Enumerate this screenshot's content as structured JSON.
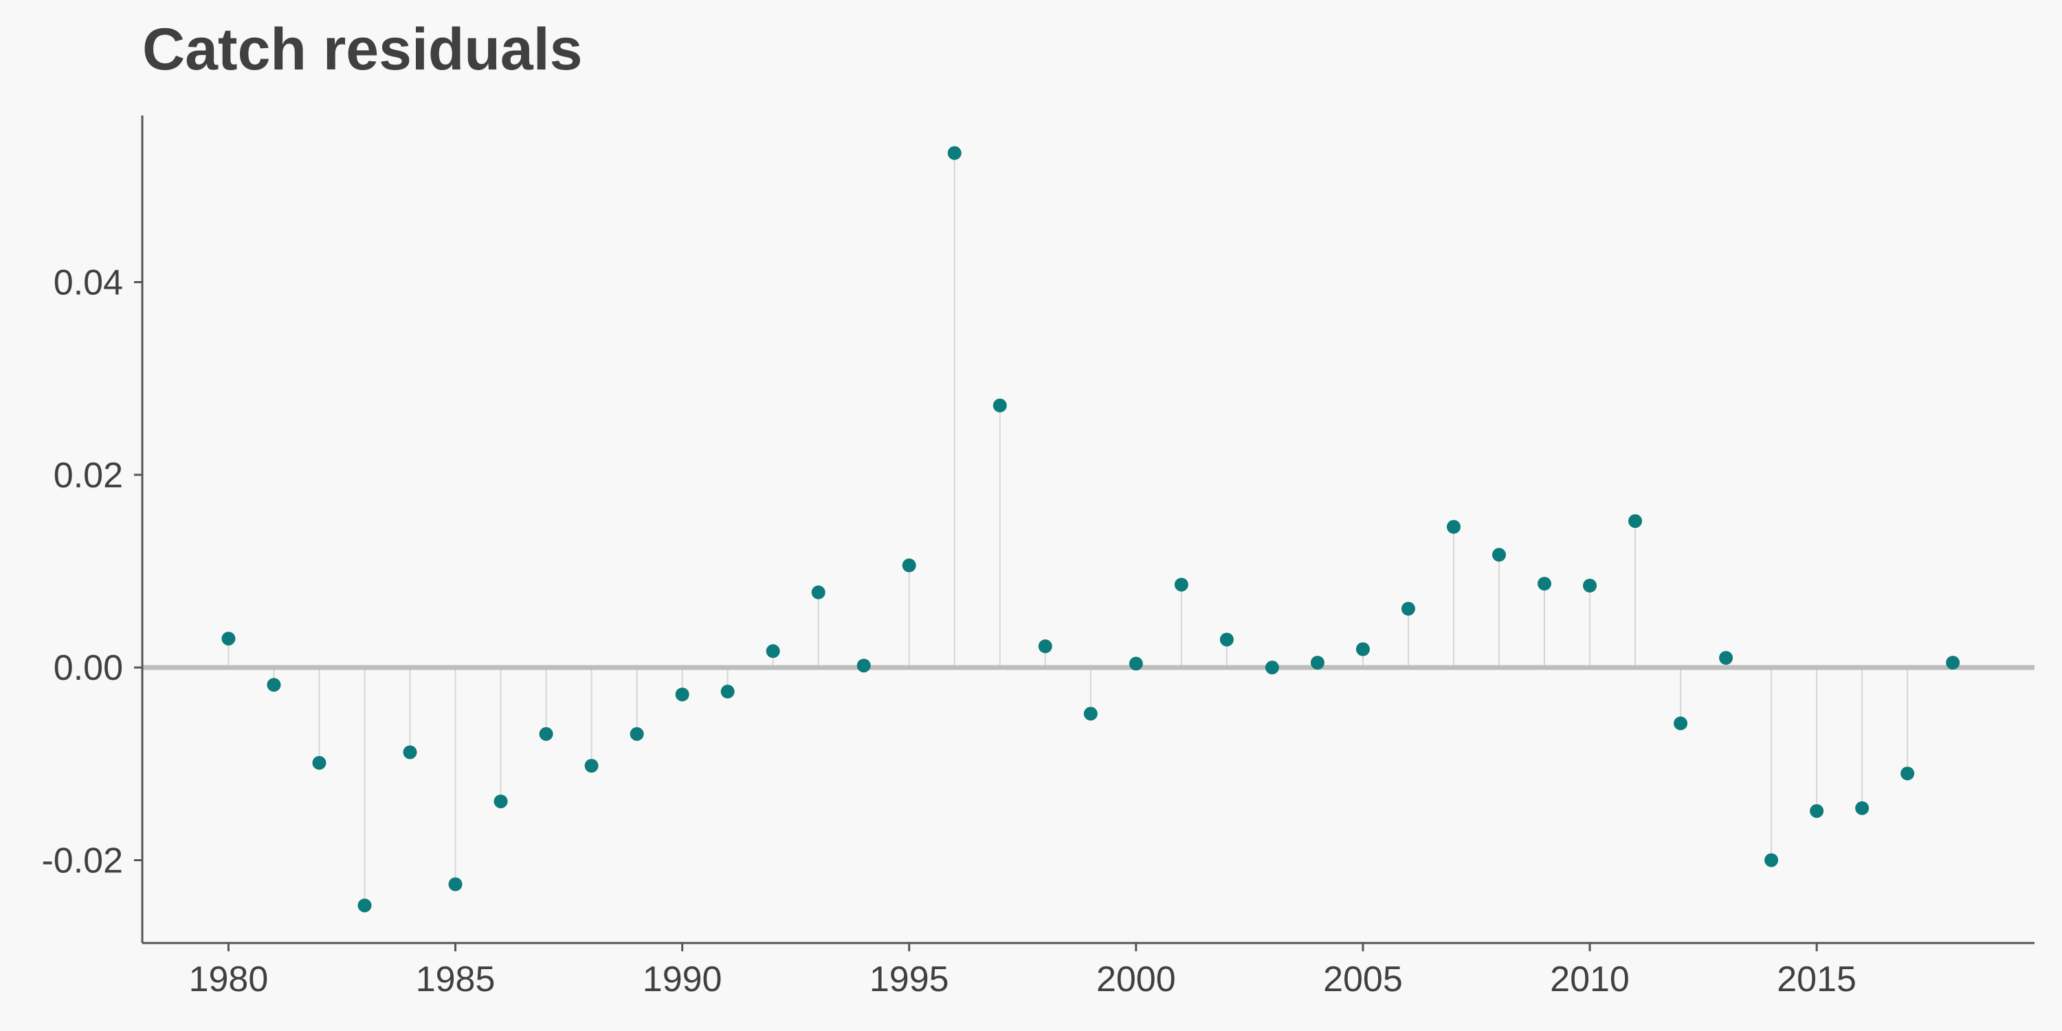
{
  "chart_data": {
    "type": "scatter",
    "style": "lollipop",
    "title": "Catch residuals",
    "xlabel": "",
    "ylabel": "",
    "xlim": [
      1978.1,
      2019.8
    ],
    "ylim": [
      -0.0286,
      0.0573
    ],
    "x_ticks": [
      1980,
      1985,
      1990,
      1995,
      2000,
      2005,
      2010,
      2015
    ],
    "y_ticks": [
      -0.02,
      0.0,
      0.02,
      0.04
    ],
    "y_tick_labels": [
      "-0.02",
      "0.00",
      "0.02",
      "0.04"
    ],
    "baseline": 0,
    "grid": false,
    "colors": {
      "points": "#0b7b7b",
      "baseline": "#bdbdbd",
      "stems": "#d6d6d6",
      "background": "#f8f8f8"
    },
    "x": [
      1980,
      1981,
      1982,
      1983,
      1984,
      1985,
      1986,
      1987,
      1988,
      1989,
      1990,
      1991,
      1992,
      1993,
      1994,
      1995,
      1996,
      1997,
      1998,
      1999,
      2000,
      2001,
      2002,
      2003,
      2004,
      2005,
      2006,
      2007,
      2008,
      2009,
      2010,
      2011,
      2012,
      2013,
      2014,
      2015,
      2016,
      2017,
      2018
    ],
    "y": [
      0.003,
      -0.0018,
      -0.0099,
      -0.0247,
      -0.0088,
      -0.0225,
      -0.0139,
      -0.0069,
      -0.0102,
      -0.0069,
      -0.0028,
      -0.0025,
      0.0017,
      0.0078,
      0.0002,
      0.0106,
      0.0534,
      0.0272,
      0.0022,
      -0.0048,
      0.0004,
      0.0086,
      0.0029,
      0.0,
      0.0005,
      0.0019,
      0.0061,
      0.0146,
      0.0117,
      0.0087,
      0.0085,
      0.0152,
      -0.0058,
      0.001,
      -0.02,
      -0.0149,
      -0.0146,
      -0.011,
      0.0005
    ]
  }
}
